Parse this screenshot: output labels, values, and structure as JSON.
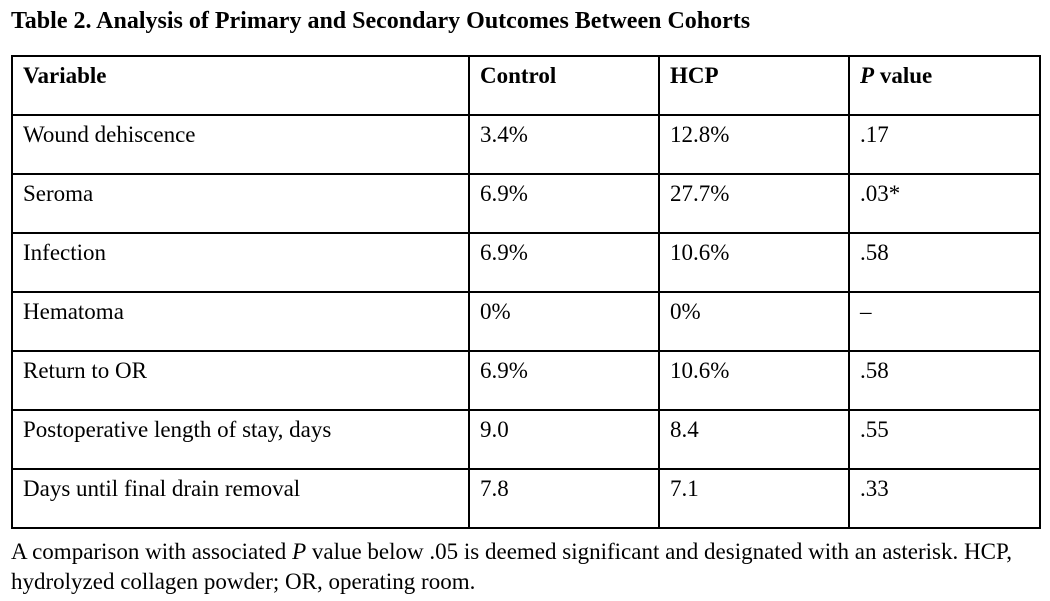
{
  "title": "Table 2. Analysis of Primary and Secondary Outcomes Between Cohorts",
  "table": {
    "header": {
      "variable": "Variable",
      "control": "Control",
      "hcp": "HCP",
      "p_italic": "P",
      "p_rest": " value"
    },
    "rows": [
      [
        "Wound dehiscence",
        "3.4%",
        "12.8%",
        ".17"
      ],
      [
        "Seroma",
        "6.9%",
        "27.7%",
        ".03*"
      ],
      [
        "Infection",
        "6.9%",
        "10.6%",
        ".58"
      ],
      [
        "Hematoma",
        "0%",
        "0%",
        "–"
      ],
      [
        "Return to OR",
        "6.9%",
        "10.6%",
        ".58"
      ],
      [
        "Postoperative length of stay, days",
        "9.0",
        "8.4",
        ".55"
      ],
      [
        "Days until final drain removal",
        "7.8",
        "7.1",
        ".33"
      ]
    ]
  },
  "footnote": {
    "before_p": "A comparison with associated ",
    "p": "P",
    "after_p": " value below .05 is deemed significant and designated with an asterisk. HCP, hydrolyzed collagen powder; OR, operating room."
  },
  "colors": {
    "text": "#000000",
    "background": "#ffffff",
    "border": "#000000"
  }
}
